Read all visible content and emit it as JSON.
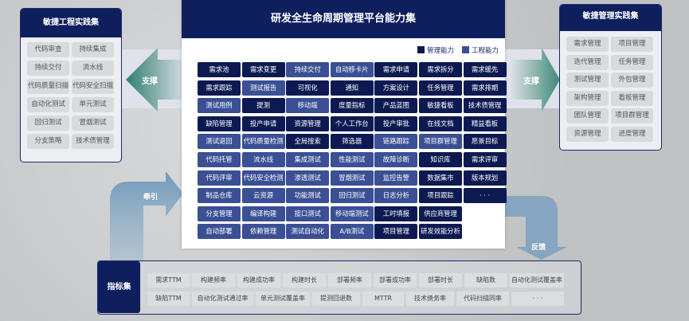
{
  "center": {
    "title": "研发全生命周期管理平台能力集",
    "legend": [
      {
        "label": "管理能力",
        "color": "#0d1a52"
      },
      {
        "label": "工程能力",
        "color": "#3a4f94"
      }
    ],
    "grid": [
      [
        [
          "需求池",
          "m"
        ],
        [
          "需求变更",
          "m"
        ],
        [
          "持续交付",
          "e"
        ],
        [
          "自动移卡片",
          "e"
        ],
        [
          "需求申请",
          "m"
        ],
        [
          "需求拆分",
          "m"
        ],
        [
          "需求缓先",
          "m"
        ]
      ],
      [
        [
          "需求跟踪",
          "m"
        ],
        [
          "测试报告",
          "e"
        ],
        [
          "可视化",
          "m"
        ],
        [
          "通知",
          "m"
        ],
        [
          "方案设计",
          "m"
        ],
        [
          "任务管理",
          "m"
        ],
        [
          "需求排期",
          "m"
        ]
      ],
      [
        [
          "测试用例",
          "e"
        ],
        [
          "提测",
          "m"
        ],
        [
          "移动端",
          "e"
        ],
        [
          "度量指标",
          "m"
        ],
        [
          "产品蓝图",
          "m"
        ],
        [
          "敏捷看板",
          "m"
        ],
        [
          "技术债管理",
          "m"
        ]
      ],
      [
        [
          "缺陷管理",
          "m"
        ],
        [
          "投产申请",
          "m"
        ],
        [
          "资源管理",
          "m"
        ],
        [
          "个人工作台",
          "m"
        ],
        [
          "投产审批",
          "m"
        ],
        [
          "在线文档",
          "m"
        ],
        [
          "精益看板",
          "m"
        ]
      ],
      [
        [
          "测试退回",
          "e"
        ],
        [
          "代码质量检测",
          "e"
        ],
        [
          "全局搜索",
          "m"
        ],
        [
          "筛选器",
          "m"
        ],
        [
          "链路跟踪",
          "e"
        ],
        [
          "项目群管理",
          "e"
        ],
        [
          "愿景目标",
          "m"
        ]
      ],
      [
        [
          "代码托管",
          "e"
        ],
        [
          "流水线",
          "e"
        ],
        [
          "集成测试",
          "e"
        ],
        [
          "性能测试",
          "e"
        ],
        [
          "故障诊断",
          "e"
        ],
        [
          "知识库",
          "m"
        ],
        [
          "需求评审",
          "m"
        ]
      ],
      [
        [
          "代码评审",
          "e"
        ],
        [
          "代码安全检测",
          "e"
        ],
        [
          "渗透测试",
          "e"
        ],
        [
          "冒烟测试",
          "e"
        ],
        [
          "监控告警",
          "e"
        ],
        [
          "数据集市",
          "m"
        ],
        [
          "版本规划",
          "m"
        ]
      ],
      [
        [
          "制品仓库",
          "e"
        ],
        [
          "云资源",
          "e"
        ],
        [
          "功能测试",
          "e"
        ],
        [
          "回归测试",
          "e"
        ],
        [
          "日志分析",
          "e"
        ],
        [
          "项目跟踪",
          "m"
        ],
        [
          "· · ·",
          "m"
        ]
      ],
      [
        [
          "分支管理",
          "e"
        ],
        [
          "编译构建",
          "e"
        ],
        [
          "接口测试",
          "e"
        ],
        [
          "移动端测试",
          "e"
        ],
        [
          "工时填报",
          "m"
        ],
        [
          "供应商管理",
          "m"
        ]
      ],
      [
        [
          "自动部署",
          "e"
        ],
        [
          "依赖管理",
          "e"
        ],
        [
          "测试自动化",
          "e"
        ],
        [
          "A/B测试",
          "e"
        ],
        [
          "项目管理",
          "m"
        ],
        [
          "研发效能分析",
          "m"
        ]
      ]
    ]
  },
  "left_panel": {
    "title": "敏捷工程实践集",
    "items": [
      "代码审查",
      "持续集成",
      "持续交付",
      "流水线",
      "代码质量扫描",
      "代码安全扫描",
      "自动化测试",
      "单元测试",
      "回归测试",
      "冒烟测试",
      "分支策略",
      "技术债管理"
    ]
  },
  "right_panel": {
    "title": "敏捷管理实践集",
    "items": [
      "需求管理",
      "项目管理",
      "迭代管理",
      "任务管理",
      "测试管理",
      "外包管理",
      "架构管理",
      "看板管理",
      "团队管理",
      "项目群管理",
      "资源管理",
      "进度管理"
    ]
  },
  "arrows": {
    "left": "支撑",
    "right": "支撑",
    "lead": "牵引",
    "feedback": "反馈"
  },
  "metrics": {
    "title": "指标集",
    "row1": [
      "需求TTM",
      "构建频率",
      "构建成功率",
      "构建时长",
      "部署频率",
      "部署成功率",
      "部署时长",
      "缺陷数",
      "自动化测试覆盖率"
    ],
    "row2": [
      "缺陷TTM",
      "自动化测试通过率",
      "单元测试覆盖率",
      "提测回退数",
      "MTTR",
      "技术债务率",
      "代码扫描同率",
      "· · ·"
    ]
  }
}
